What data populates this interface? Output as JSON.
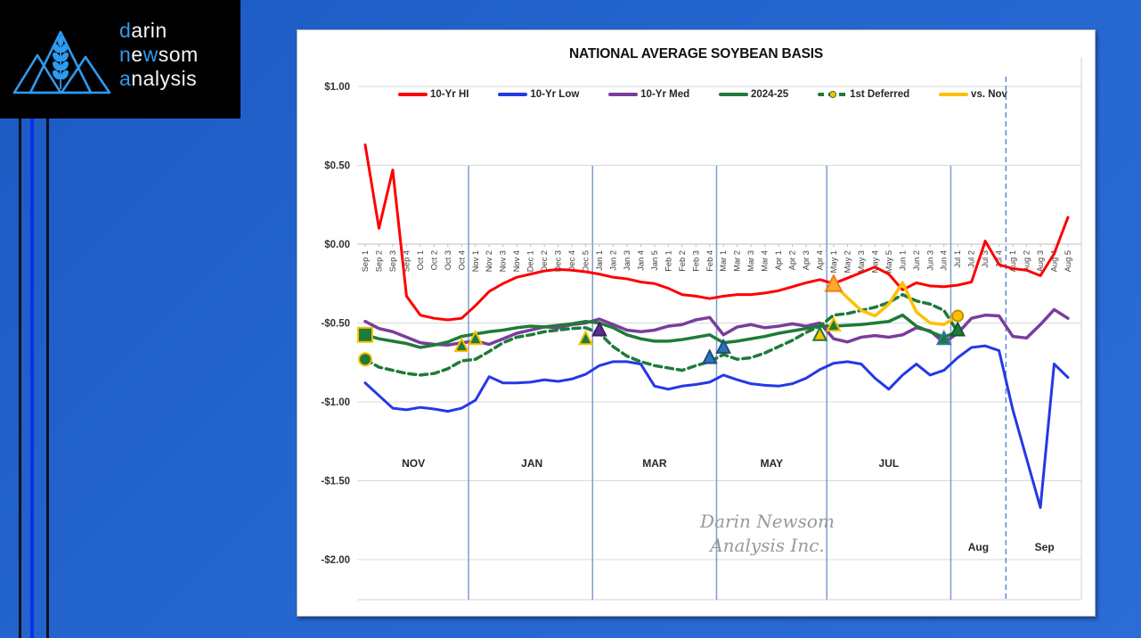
{
  "logo": {
    "accent_color": "#2E9BF0",
    "lines": [
      [
        [
          "d",
          "b"
        ],
        [
          "arin",
          "w"
        ]
      ],
      [
        [
          "n",
          "b"
        ],
        [
          "e",
          "w"
        ],
        [
          "w",
          "b"
        ],
        [
          "som",
          "w"
        ]
      ],
      [
        [
          "a",
          "b"
        ],
        [
          "nalysis",
          "w"
        ]
      ]
    ]
  },
  "chart": {
    "title": "NATIONAL AVERAGE SOYBEAN BASIS",
    "watermark": {
      "line1": "Darin Newsom",
      "line2": "Analysis Inc."
    }
  },
  "chart_data": {
    "type": "line",
    "title": "NATIONAL AVERAGE SOYBEAN BASIS",
    "ylim": [
      -2.0,
      1.0
    ],
    "grid": true,
    "legend_position": "top",
    "y_axis": [
      {
        "value": 1.0,
        "label": "$1.00"
      },
      {
        "value": 0.5,
        "label": "$0.50"
      },
      {
        "value": 0.0,
        "label": "$0.00"
      },
      {
        "value": -0.5,
        "label": "-$0.50"
      },
      {
        "value": -1.0,
        "label": "-$1.00"
      },
      {
        "value": -1.5,
        "label": "-$1.50"
      },
      {
        "value": -2.0,
        "label": "-$2.00"
      }
    ],
    "categories": [
      "Sep 1",
      "Sep 2",
      "Sep 3",
      "Sep 4",
      "Oct 1",
      "Oct 2",
      "Oct 3",
      "Oct 4",
      "Nov 1",
      "Nov 2",
      "Nov 3",
      "Nov 4",
      "Dec 1",
      "Dec 2",
      "Dec 3",
      "Dec 4",
      "Dec 5",
      "Jan 1",
      "Jan 2",
      "Jan 3",
      "Jan 4",
      "Jan 5",
      "Feb 1",
      "Feb 2",
      "Feb 3",
      "Feb 4",
      "Mar 1",
      "Mar 2",
      "Mar 3",
      "Mar 4",
      "Apr 1",
      "Apr 2",
      "Apr 3",
      "Apr 4",
      "May 1",
      "May 2",
      "May 3",
      "May 4",
      "May 5",
      "Jun 1",
      "Jun 2",
      "Jun 3",
      "Jun 4",
      "Jul 1",
      "Jul 2",
      "Jul 3",
      "Jul 4",
      "Aug 1",
      "Aug 2",
      "Aug 3",
      "Aug 4",
      "Aug 5"
    ],
    "series": [
      {
        "name": "10-Yr HI",
        "color": "#FE0000",
        "width": 3,
        "dash": null,
        "values": [
          0.63,
          0.1,
          0.47,
          -0.33,
          -0.45,
          -0.47,
          -0.48,
          -0.47,
          -0.39,
          -0.3,
          -0.25,
          -0.21,
          -0.19,
          -0.17,
          -0.16,
          -0.165,
          -0.175,
          -0.19,
          -0.21,
          -0.22,
          -0.24,
          -0.25,
          -0.28,
          -0.32,
          -0.33,
          -0.345,
          -0.33,
          -0.32,
          -0.32,
          -0.31,
          -0.295,
          -0.27,
          -0.245,
          -0.225,
          -0.25,
          -0.215,
          -0.18,
          -0.145,
          -0.19,
          -0.29,
          -0.245,
          -0.265,
          -0.27,
          -0.26,
          -0.24,
          0.02,
          -0.13,
          -0.155,
          -0.165,
          -0.2,
          -0.06,
          0.17
        ]
      },
      {
        "name": "10-Yr Low",
        "color": "#2438E8",
        "width": 3,
        "dash": null,
        "values": [
          -0.88,
          -0.96,
          -1.04,
          -1.05,
          -1.035,
          -1.045,
          -1.06,
          -1.04,
          -0.99,
          -0.84,
          -0.88,
          -0.88,
          -0.875,
          -0.86,
          -0.87,
          -0.855,
          -0.825,
          -0.77,
          -0.745,
          -0.745,
          -0.76,
          -0.9,
          -0.92,
          -0.9,
          -0.89,
          -0.875,
          -0.83,
          -0.86,
          -0.885,
          -0.895,
          -0.9,
          -0.885,
          -0.85,
          -0.795,
          -0.755,
          -0.745,
          -0.76,
          -0.85,
          -0.92,
          -0.83,
          -0.76,
          -0.83,
          -0.8,
          -0.72,
          -0.655,
          -0.645,
          -0.675,
          -1.05,
          -1.36,
          -1.67,
          -0.76,
          -0.845
        ]
      },
      {
        "name": "10-Yr Med",
        "color": "#7A3D9B",
        "width": 3.5,
        "dash": null,
        "values": [
          -0.49,
          -0.535,
          -0.555,
          -0.59,
          -0.625,
          -0.635,
          -0.64,
          -0.625,
          -0.615,
          -0.635,
          -0.6,
          -0.565,
          -0.545,
          -0.525,
          -0.53,
          -0.51,
          -0.5,
          -0.475,
          -0.51,
          -0.545,
          -0.555,
          -0.545,
          -0.52,
          -0.51,
          -0.48,
          -0.465,
          -0.575,
          -0.525,
          -0.51,
          -0.53,
          -0.52,
          -0.505,
          -0.52,
          -0.5,
          -0.6,
          -0.62,
          -0.59,
          -0.58,
          -0.59,
          -0.575,
          -0.53,
          -0.55,
          -0.625,
          -0.565,
          -0.47,
          -0.45,
          -0.455,
          -0.585,
          -0.595,
          -0.51,
          -0.415,
          -0.47
        ]
      },
      {
        "name": "2024-25",
        "color": "#1E7B38",
        "width": 3.5,
        "dash": null,
        "values": [
          -0.575,
          -0.6,
          -0.615,
          -0.63,
          -0.655,
          -0.64,
          -0.62,
          -0.585,
          -0.57,
          -0.555,
          -0.545,
          -0.53,
          -0.52,
          -0.525,
          -0.515,
          -0.505,
          -0.49,
          -0.5,
          -0.53,
          -0.575,
          -0.6,
          -0.615,
          -0.615,
          -0.605,
          -0.59,
          -0.575,
          -0.625,
          -0.615,
          -0.6,
          -0.585,
          -0.565,
          -0.55,
          -0.535,
          -0.52,
          -0.52,
          -0.515,
          -0.51,
          -0.5,
          -0.49,
          -0.45,
          -0.52,
          -0.555,
          -0.59,
          -0.555,
          null,
          null,
          null,
          null,
          null,
          null,
          null,
          null
        ]
      },
      {
        "name": "1st Deferred",
        "color": "#1E7B38",
        "width": 3.5,
        "dash": "8 5",
        "values": [
          -0.73,
          -0.78,
          -0.8,
          -0.82,
          -0.83,
          -0.82,
          -0.79,
          -0.74,
          -0.73,
          -0.68,
          -0.625,
          -0.59,
          -0.575,
          -0.555,
          -0.545,
          -0.535,
          -0.53,
          -0.565,
          -0.65,
          -0.71,
          -0.745,
          -0.77,
          -0.785,
          -0.8,
          -0.77,
          -0.745,
          -0.7,
          -0.73,
          -0.72,
          -0.69,
          -0.65,
          -0.61,
          -0.56,
          -0.52,
          -0.45,
          -0.44,
          -0.42,
          -0.4,
          -0.37,
          -0.32,
          -0.36,
          -0.38,
          -0.42,
          -0.555,
          null,
          null,
          null,
          null,
          null,
          null,
          null,
          null
        ]
      },
      {
        "name": "vs. Nov",
        "color": "#FFC000",
        "width": 3.5,
        "dash": null,
        "values": [
          null,
          null,
          null,
          null,
          null,
          null,
          null,
          null,
          null,
          null,
          null,
          null,
          null,
          null,
          null,
          null,
          null,
          null,
          null,
          null,
          null,
          null,
          null,
          null,
          null,
          null,
          null,
          null,
          null,
          null,
          null,
          null,
          null,
          null,
          -0.255,
          -0.34,
          -0.42,
          -0.455,
          -0.38,
          -0.245,
          -0.43,
          -0.5,
          -0.51,
          -0.455,
          null,
          null,
          null,
          null,
          null,
          null,
          null,
          null
        ]
      }
    ],
    "legend": [
      {
        "label": "10-Yr HI",
        "color": "#FE0000",
        "style": "solid"
      },
      {
        "label": "10-Yr Low",
        "color": "#2438E8",
        "style": "solid"
      },
      {
        "label": "10-Yr Med",
        "color": "#7A3D9B",
        "style": "solid"
      },
      {
        "label": "2024-25",
        "color": "#1E7B38",
        "style": "solid"
      },
      {
        "label": "1st Deferred",
        "color": "#1E7B38",
        "style": "dashed-dot"
      },
      {
        "label": "vs. Nov",
        "color": "#FFC000",
        "style": "solid"
      }
    ],
    "month_labels": [
      {
        "label": "NOV",
        "center_index": 3.5,
        "row": 1
      },
      {
        "label": "JAN",
        "center_index": 12.1,
        "row": 1
      },
      {
        "label": "MAR",
        "center_index": 21.0,
        "row": 1
      },
      {
        "label": "MAY",
        "center_index": 29.5,
        "row": 1
      },
      {
        "label": "JUL",
        "center_index": 38.0,
        "row": 1
      },
      {
        "label": "Aug",
        "center_index": 44.5,
        "row": 2
      },
      {
        "label": "Sep",
        "center_index": 49.3,
        "row": 2
      }
    ],
    "boundaries": {
      "solid": [
        7.5,
        16.5,
        25.5,
        33.5,
        42.5
      ],
      "dashed": [
        46.5
      ]
    },
    "markers": [
      {
        "index": 0,
        "value": -0.575,
        "shape": "square",
        "fill": "#1E7B38",
        "stroke": "#FFC000",
        "size": 8
      },
      {
        "index": 0,
        "value": -0.73,
        "shape": "circle",
        "fill": "#1E7B38",
        "stroke": "#FFC000",
        "size": 7
      },
      {
        "index": 7,
        "value": -0.645,
        "shape": "triangle",
        "fill": "#1E7B38",
        "stroke": "#FFC000",
        "size": 8
      },
      {
        "index": 8,
        "value": -0.6,
        "shape": "triangle",
        "fill": "#1E7B38",
        "stroke": "#FFC000",
        "size": 8
      },
      {
        "index": 16,
        "value": -0.6,
        "shape": "triangle",
        "fill": "#1E7B38",
        "stroke": "#FFC000",
        "size": 8
      },
      {
        "index": 17,
        "value": -0.545,
        "shape": "triangle",
        "fill": "#5B2F8E",
        "stroke": "#3F2063",
        "size": 8
      },
      {
        "index": 25,
        "value": -0.72,
        "shape": "triangle",
        "fill": "#2E75B6",
        "stroke": "#1F4E79",
        "size": 8
      },
      {
        "index": 26,
        "value": -0.655,
        "shape": "triangle",
        "fill": "#2E75B6",
        "stroke": "#1F4E79",
        "size": 8
      },
      {
        "index": 33,
        "value": -0.575,
        "shape": "triangle",
        "fill": "#FFC000",
        "stroke": "#1E7B38",
        "size": 8
      },
      {
        "index": 34,
        "value": -0.515,
        "shape": "triangle",
        "fill": "#1E7B38",
        "stroke": "#FFC000",
        "size": 8
      },
      {
        "index": 34,
        "value": -0.255,
        "shape": "triangle",
        "fill": "#FFA833",
        "stroke": "#E87F1E",
        "size": 10
      },
      {
        "index": 42,
        "value": -0.6,
        "shape": "triangle",
        "fill": "#1E7B38",
        "stroke": "#2E75B6",
        "size": 8
      },
      {
        "index": 43,
        "value": -0.545,
        "shape": "triangle",
        "fill": "#1E7B38",
        "stroke": "#145A28",
        "size": 8
      },
      {
        "index": 43,
        "value": -0.455,
        "shape": "circle",
        "fill": "#FFC000",
        "stroke": "#BF9000",
        "size": 6
      }
    ],
    "watermark": [
      "Darin Newsom",
      "Analysis Inc."
    ]
  }
}
